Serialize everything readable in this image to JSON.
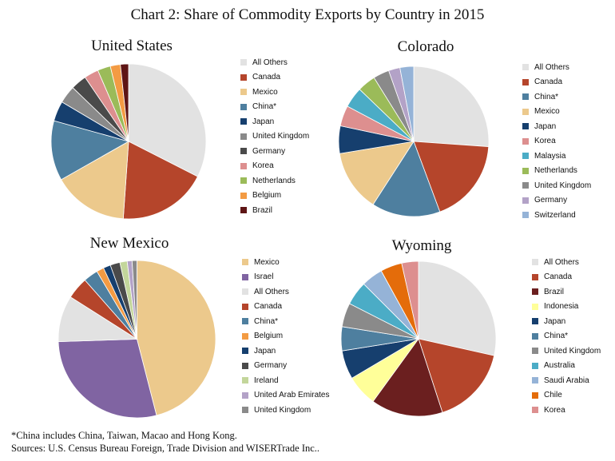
{
  "title": "Chart 2: Share of Commodity Exports by Country in 2015",
  "footnote": "*China includes China, Taiwan, Macao and Hong Kong.",
  "source": "Sources: U.S. Census Bureau Foreign, Trade Division and WISERTrade Inc..",
  "chart_data": [
    {
      "type": "pie",
      "title": "United States",
      "legend_position": "right",
      "series": [
        {
          "name": "All Others",
          "value": 32.5,
          "color": "#e2e2e2"
        },
        {
          "name": "Canada",
          "value": 18.6,
          "color": "#b5452b"
        },
        {
          "name": "Mexico",
          "value": 15.7,
          "color": "#ecc98c"
        },
        {
          "name": "China*",
          "value": 12.5,
          "color": "#4e7f9f"
        },
        {
          "name": "Japan",
          "value": 4.2,
          "color": "#163f6e"
        },
        {
          "name": "United Kingdom",
          "value": 3.7,
          "color": "#8a8a8a"
        },
        {
          "name": "Germany",
          "value": 3.3,
          "color": "#4a4a4a"
        },
        {
          "name": "Korea",
          "value": 3.0,
          "color": "#dd8f8f"
        },
        {
          "name": "Netherlands",
          "value": 2.7,
          "color": "#9bbb59"
        },
        {
          "name": "Belgium",
          "value": 2.1,
          "color": "#f39b43"
        },
        {
          "name": "Brazil",
          "value": 1.7,
          "color": "#5e1515"
        }
      ]
    },
    {
      "type": "pie",
      "title": "Colorado",
      "legend_position": "right",
      "series": [
        {
          "name": "All Others",
          "value": 26.5,
          "color": "#e2e2e2"
        },
        {
          "name": "Canada",
          "value": 18.5,
          "color": "#b5452b"
        },
        {
          "name": "China*",
          "value": 15.0,
          "color": "#4e7f9f"
        },
        {
          "name": "Mexico",
          "value": 13.5,
          "color": "#ecc98c"
        },
        {
          "name": "Japan",
          "value": 6.0,
          "color": "#163f6e"
        },
        {
          "name": "Korea",
          "value": 4.5,
          "color": "#dd8f8f"
        },
        {
          "name": "Malaysia",
          "value": 4.5,
          "color": "#4bacc6"
        },
        {
          "name": "Netherlands",
          "value": 4.0,
          "color": "#9bbb59"
        },
        {
          "name": "United Kingdom",
          "value": 3.5,
          "color": "#8a8a8a"
        },
        {
          "name": "Germany",
          "value": 2.5,
          "color": "#b3a2c7"
        },
        {
          "name": "Switzerland",
          "value": 3.0,
          "color": "#95b3d7"
        }
      ]
    },
    {
      "type": "pie",
      "title": "New Mexico",
      "legend_position": "right",
      "series": [
        {
          "name": "Mexico",
          "value": 46.0,
          "color": "#ecc98c"
        },
        {
          "name": "Israel",
          "value": 28.5,
          "color": "#8064a2"
        },
        {
          "name": "All Others",
          "value": 9.5,
          "color": "#e2e2e2"
        },
        {
          "name": "Canada",
          "value": 4.5,
          "color": "#b5452b"
        },
        {
          "name": "China*",
          "value": 3.0,
          "color": "#4e7f9f"
        },
        {
          "name": "Belgium",
          "value": 1.5,
          "color": "#f39b43"
        },
        {
          "name": "Japan",
          "value": 1.5,
          "color": "#163f6e"
        },
        {
          "name": "Germany",
          "value": 2.0,
          "color": "#4a4a4a"
        },
        {
          "name": "Ireland",
          "value": 1.5,
          "color": "#c3d69b"
        },
        {
          "name": "United Arab Emirates",
          "value": 1.0,
          "color": "#b3a2c7"
        },
        {
          "name": "United Kingdom",
          "value": 1.0,
          "color": "#8a8a8a"
        }
      ]
    },
    {
      "type": "pie",
      "title": "Wyoming",
      "legend_position": "right",
      "series": [
        {
          "name": "All Others",
          "value": 28.5,
          "color": "#e2e2e2"
        },
        {
          "name": "Canada",
          "value": 16.5,
          "color": "#b5452b"
        },
        {
          "name": "Brazil",
          "value": 15.0,
          "color": "#6b1f1f"
        },
        {
          "name": "Indonesia",
          "value": 6.5,
          "color": "#ffff99"
        },
        {
          "name": "Japan",
          "value": 6.0,
          "color": "#163f6e"
        },
        {
          "name": "China*",
          "value": 5.0,
          "color": "#4e7f9f"
        },
        {
          "name": "United Kingdom",
          "value": 5.0,
          "color": "#8a8a8a"
        },
        {
          "name": "Australia",
          "value": 5.0,
          "color": "#4bacc6"
        },
        {
          "name": "Saudi Arabia",
          "value": 4.5,
          "color": "#95b3d7"
        },
        {
          "name": "Chile",
          "value": 4.5,
          "color": "#e46c0a"
        },
        {
          "name": "Korea",
          "value": 3.5,
          "color": "#dd8f8f"
        }
      ]
    }
  ]
}
